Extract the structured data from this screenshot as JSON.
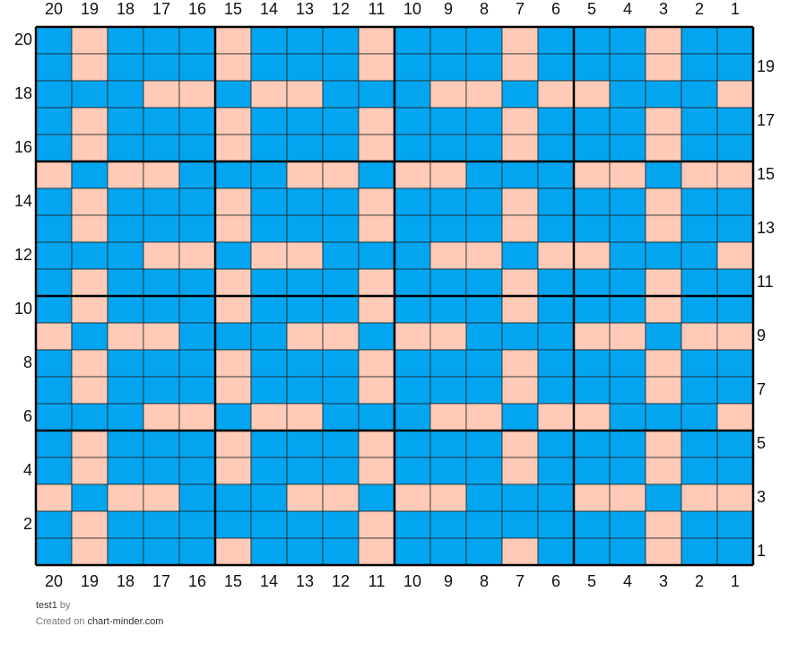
{
  "chart": {
    "column_numbers": [
      20,
      19,
      18,
      17,
      16,
      15,
      14,
      13,
      12,
      11,
      10,
      9,
      8,
      7,
      6,
      5,
      4,
      3,
      2,
      1
    ],
    "colors": {
      "B": "#03a5f0",
      "P": "#ffcbb8"
    },
    "rows": [
      {
        "number": 20,
        "cells": "BPBBBPBBBPBBBPBBBPBB"
      },
      {
        "number": 19,
        "cells": "BPBBBPBBBPBBBPBBBPBB"
      },
      {
        "number": 18,
        "cells": "BBBPPBPPBBBPPBPPBBBP"
      },
      {
        "number": 17,
        "cells": "BPBBBPBBBPBBBPBBBPBB"
      },
      {
        "number": 16,
        "cells": "BPBBBPBBBPBBBPBBBPBB"
      },
      {
        "number": 15,
        "cells": "PBPPBBBPPBPPBBBPPBPP"
      },
      {
        "number": 14,
        "cells": "BPBBBPBBBPBBBPBBBPBB"
      },
      {
        "number": 13,
        "cells": "BPBBBPBBBPBBBPBBBPBB"
      },
      {
        "number": 12,
        "cells": "BBBPPBPPBBBPPBPPBBBP"
      },
      {
        "number": 11,
        "cells": "BPBBBPBBBPBBBPBBBPBB"
      },
      {
        "number": 10,
        "cells": "BPBBBPBBBPBBBPBBBPBB"
      },
      {
        "number": 9,
        "cells": "PBPPBBBPPBPPBBBPPBPP"
      },
      {
        "number": 8,
        "cells": "BPBBBPBBBPBBBPBBBPBB"
      },
      {
        "number": 7,
        "cells": "BPBBBPBBBPBBBPBBBPBB"
      },
      {
        "number": 6,
        "cells": "BBBPPBPPBBBPPBPPBBBP"
      },
      {
        "number": 5,
        "cells": "BPBBBPBBBPBBBPBBBPBB"
      },
      {
        "number": 4,
        "cells": "BPBBBPBBBPBBBPBBBPBB"
      },
      {
        "number": 3,
        "cells": "PBPPBBBPPBPPBBBPPBPP"
      },
      {
        "number": 2,
        "cells": "BPBBBBBBBPBBBBBBBPBB"
      },
      {
        "number": 1,
        "cells": "BPBBBPBBBPBBBPBBBPBB"
      }
    ]
  },
  "footer": {
    "name": "test1",
    "by": "by",
    "created": "Created on",
    "site": "chart-minder.com"
  }
}
